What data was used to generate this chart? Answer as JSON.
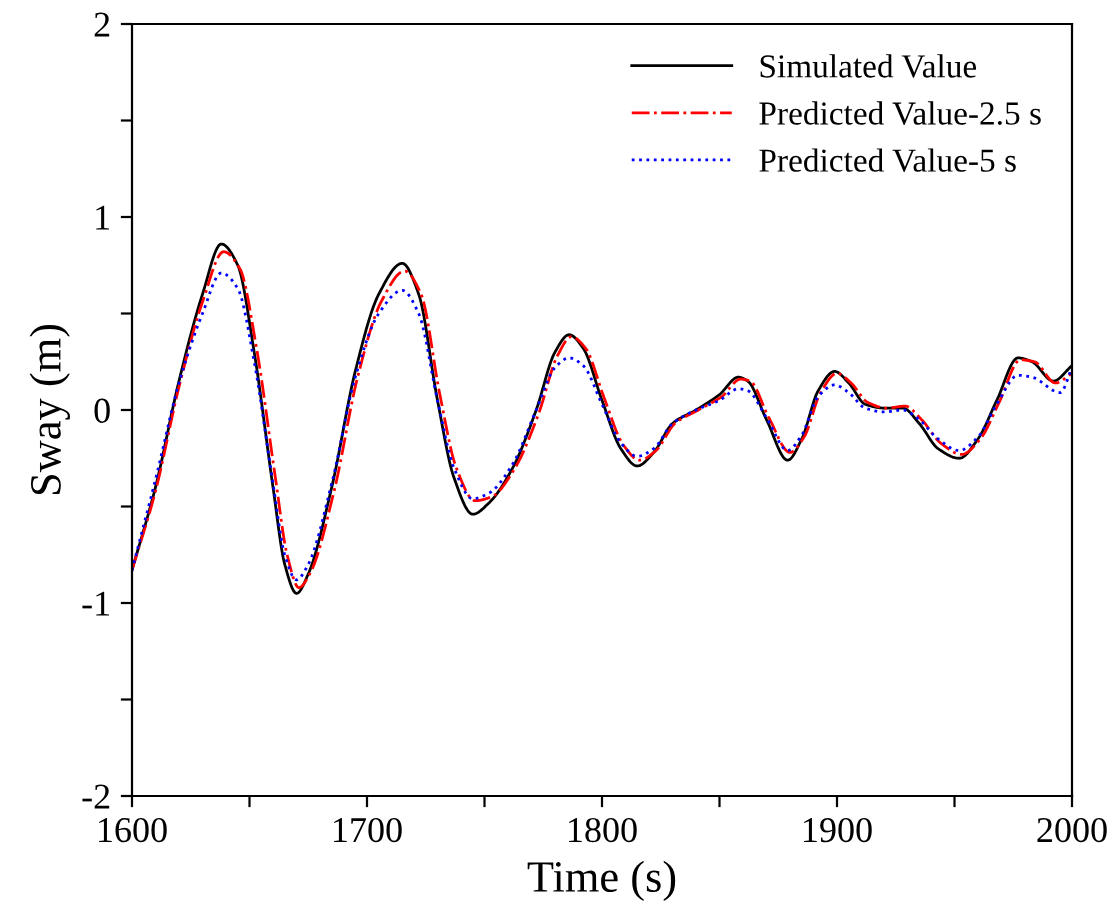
{
  "chart_data": {
    "type": "line",
    "xlabel": "Time (s)",
    "ylabel": "Sway (m)",
    "xlim": [
      1600,
      2000
    ],
    "ylim": [
      -2,
      2
    ],
    "xticks": [
      1600,
      {
        "value": 1650,
        "label": null
      },
      1700,
      {
        "value": 1750,
        "label": null
      },
      1800,
      {
        "value": 1850,
        "label": null
      },
      1900,
      {
        "value": 1950,
        "label": null
      },
      2000
    ],
    "yticks": [
      -2,
      {
        "value": -1.5,
        "label": null
      },
      -1,
      {
        "value": -0.5,
        "label": null
      },
      0,
      {
        "value": 0.5,
        "label": null
      },
      1,
      {
        "value": 1.5,
        "label": null
      },
      2
    ],
    "grid": false,
    "legend": "top right",
    "marker": "none",
    "series": [
      {
        "name": "Simulated Value",
        "color": "#000000",
        "line_style": "solid",
        "x": [
          1600,
          1610,
          1620,
          1630,
          1638,
          1645,
          1652,
          1660,
          1665,
          1670,
          1675,
          1685,
          1695,
          1705,
          1715,
          1722,
          1730,
          1737,
          1745,
          1752,
          1762,
          1772,
          1780,
          1786,
          1792,
          1800,
          1808,
          1815,
          1822,
          1830,
          1840,
          1850,
          1858,
          1862,
          1870,
          1879,
          1885,
          1892,
          1899,
          1905,
          1912,
          1920,
          1928,
          1935,
          1943,
          1952,
          1960,
          1968,
          1977,
          1983,
          1992,
          2000
        ],
        "values": [
          -0.83,
          -0.4,
          0.15,
          0.6,
          0.86,
          0.75,
          0.3,
          -0.4,
          -0.8,
          -0.95,
          -0.85,
          -0.4,
          0.2,
          0.6,
          0.76,
          0.6,
          0.05,
          -0.35,
          -0.54,
          -0.48,
          -0.3,
          0.0,
          0.3,
          0.39,
          0.32,
          0.05,
          -0.2,
          -0.29,
          -0.22,
          -0.07,
          0.0,
          0.08,
          0.17,
          0.15,
          -0.05,
          -0.26,
          -0.15,
          0.1,
          0.2,
          0.14,
          0.03,
          0.01,
          0.01,
          -0.07,
          -0.2,
          -0.25,
          -0.15,
          0.05,
          0.27,
          0.25,
          0.15,
          0.23
        ]
      },
      {
        "name": "Predicted Value-2.5 s",
        "color": "#ff0000",
        "line_style": "dashdot",
        "x": [
          1600,
          1610,
          1620,
          1630,
          1639,
          1646,
          1653,
          1661,
          1666,
          1671,
          1676,
          1686,
          1696,
          1706,
          1716,
          1723,
          1731,
          1738,
          1746,
          1753,
          1763,
          1773,
          1781,
          1787,
          1793,
          1801,
          1809,
          1816,
          1823,
          1831,
          1841,
          1851,
          1859,
          1863,
          1871,
          1880,
          1886,
          1893,
          1900,
          1906,
          1913,
          1921,
          1929,
          1936,
          1944,
          1953,
          1961,
          1969,
          1978,
          1984,
          1993,
          2000
        ],
        "values": [
          -0.83,
          -0.42,
          0.12,
          0.56,
          0.82,
          0.73,
          0.32,
          -0.35,
          -0.75,
          -0.92,
          -0.84,
          -0.42,
          0.17,
          0.56,
          0.72,
          0.6,
          0.08,
          -0.3,
          -0.47,
          -0.45,
          -0.3,
          -0.02,
          0.28,
          0.38,
          0.32,
          0.06,
          -0.18,
          -0.26,
          -0.21,
          -0.07,
          0.0,
          0.07,
          0.16,
          0.15,
          -0.04,
          -0.22,
          -0.14,
          0.09,
          0.19,
          0.14,
          0.04,
          0.01,
          0.02,
          -0.05,
          -0.17,
          -0.23,
          -0.15,
          0.04,
          0.26,
          0.25,
          0.14,
          0.19
        ]
      },
      {
        "name": "Predicted Value-5 s",
        "color": "#0000ff",
        "line_style": "dotted",
        "x": [
          1600,
          1610,
          1620,
          1630,
          1638,
          1645,
          1652,
          1660,
          1665,
          1670,
          1675,
          1685,
          1695,
          1705,
          1715,
          1722,
          1730,
          1737,
          1745,
          1752,
          1762,
          1772,
          1780,
          1786,
          1792,
          1800,
          1808,
          1815,
          1822,
          1830,
          1840,
          1850,
          1858,
          1862,
          1870,
          1879,
          1885,
          1892,
          1899,
          1905,
          1912,
          1920,
          1928,
          1935,
          1943,
          1952,
          1960,
          1968,
          1977,
          1983,
          1995,
          2000
        ],
        "values": [
          -0.83,
          -0.36,
          0.14,
          0.5,
          0.71,
          0.63,
          0.25,
          -0.38,
          -0.75,
          -0.88,
          -0.8,
          -0.38,
          0.17,
          0.5,
          0.62,
          0.5,
          0.05,
          -0.3,
          -0.46,
          -0.43,
          -0.28,
          0.0,
          0.22,
          0.27,
          0.23,
          0.03,
          -0.17,
          -0.24,
          -0.2,
          -0.07,
          0.0,
          0.05,
          0.11,
          0.1,
          -0.04,
          -0.21,
          -0.13,
          0.07,
          0.13,
          0.09,
          0.01,
          -0.01,
          0.0,
          -0.05,
          -0.15,
          -0.21,
          -0.14,
          0.03,
          0.18,
          0.17,
          0.09,
          0.22
        ]
      }
    ]
  }
}
